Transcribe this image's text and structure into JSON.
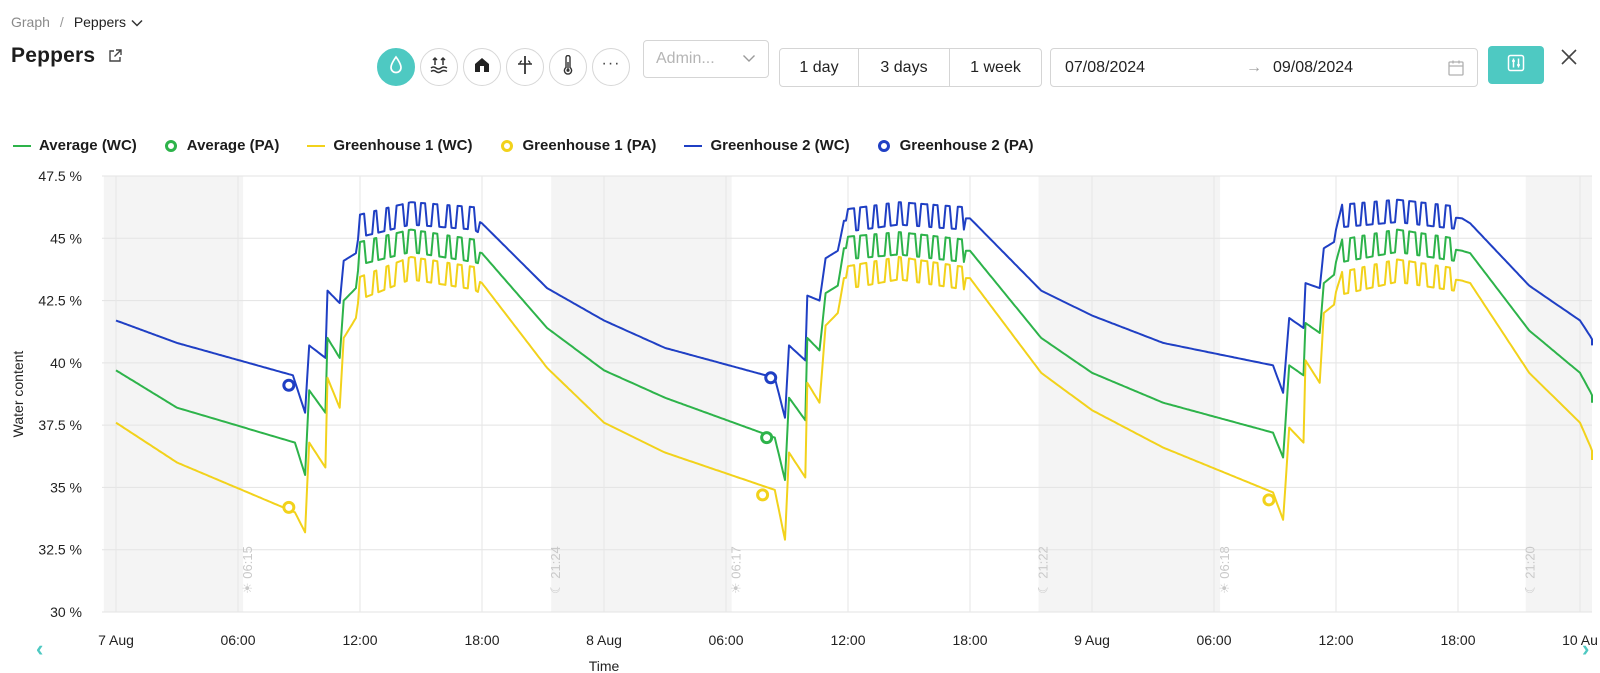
{
  "breadcrumb": {
    "root": "Graph",
    "separator": "/",
    "current": "Peppers"
  },
  "page_title": "Peppers",
  "metric_buttons": [
    {
      "icon": "water-drop-icon",
      "active": true
    },
    {
      "icon": "water-level-icon",
      "active": false
    },
    {
      "icon": "greenhouse-icon",
      "active": false
    },
    {
      "icon": "soil-sensor-icon",
      "active": false
    },
    {
      "icon": "thermometer-icon",
      "active": false
    },
    {
      "icon": "more-icon",
      "active": false,
      "label": "···"
    }
  ],
  "admin_select": {
    "placeholder": "Admin..."
  },
  "range_buttons": [
    {
      "label": "1 day"
    },
    {
      "label": "3 days"
    },
    {
      "label": "1 week"
    }
  ],
  "date_range": {
    "start": "07/08/2024",
    "arrow": "→",
    "end": "09/08/2024"
  },
  "colors": {
    "accent": "#4ec9c2",
    "average": "#2db34a",
    "greenhouse1": "#f2d21b",
    "greenhouse2": "#1f3fc4",
    "night": "#f4f4f4"
  },
  "legend": [
    {
      "label": "Average (WC)",
      "type": "line",
      "color": "#2db34a"
    },
    {
      "label": "Average (PA)",
      "type": "dot",
      "color": "#2db34a"
    },
    {
      "label": "Greenhouse 1 (WC)",
      "type": "line",
      "color": "#f2d21b"
    },
    {
      "label": "Greenhouse 1 (PA)",
      "type": "dot",
      "color": "#f2d21b"
    },
    {
      "label": "Greenhouse 2 (WC)",
      "type": "line",
      "color": "#1f3fc4"
    },
    {
      "label": "Greenhouse 2 (PA)",
      "type": "dot",
      "color": "#1f3fc4"
    }
  ],
  "chart_data": {
    "type": "line",
    "ylabel": "Water content",
    "xlabel": "Time",
    "ylim": [
      30,
      47.5
    ],
    "y_ticks": [
      "47.5 %",
      "45 %",
      "42.5 %",
      "40 %",
      "37.5 %",
      "35 %",
      "32.5 %",
      "30 %"
    ],
    "x_unit": "hours since 7 Aug 00:00",
    "x_ticks": [
      {
        "label": "7 Aug",
        "h": 0
      },
      {
        "label": "06:00",
        "h": 6
      },
      {
        "label": "12:00",
        "h": 12
      },
      {
        "label": "18:00",
        "h": 18
      },
      {
        "label": "8 Aug",
        "h": 24
      },
      {
        "label": "06:00",
        "h": 30
      },
      {
        "label": "12:00",
        "h": 36
      },
      {
        "label": "18:00",
        "h": 42
      },
      {
        "label": "9 Aug",
        "h": 48
      },
      {
        "label": "06:00",
        "h": 54
      },
      {
        "label": "12:00",
        "h": 60
      },
      {
        "label": "18:00",
        "h": 66
      },
      {
        "label": "10 Au",
        "h": 72
      }
    ],
    "night_bands": [
      [
        -0.6,
        6.25
      ],
      [
        21.4,
        30.28
      ],
      [
        45.37,
        54.3
      ],
      [
        69.33,
        72.8
      ]
    ],
    "sun_markers": [
      {
        "label": "☀ 06:15",
        "h": 6.25
      },
      {
        "label": "☾ 21:24",
        "h": 21.4
      },
      {
        "label": "☀ 06:17",
        "h": 30.28
      },
      {
        "label": "☾ 21:22",
        "h": 45.37
      },
      {
        "label": "☀ 06:18",
        "h": 54.3
      },
      {
        "label": "☾ 21:20",
        "h": 69.33
      }
    ],
    "day_shape": {
      "morning": [
        [
          0,
          0
        ],
        [
          8.8,
          -2.2
        ],
        [
          9.3,
          0.6
        ],
        [
          9.9,
          1.0
        ],
        [
          10.4,
          3.4
        ],
        [
          11.0,
          3.0
        ],
        [
          11.6,
          5.0
        ],
        [
          11.9,
          6.6
        ],
        [
          12.5,
          7.6
        ],
        [
          17.6,
          7.7
        ],
        [
          18.1,
          7.0
        ],
        [
          24,
          4.0
        ]
      ],
      "night_decay_start": 4.0
    },
    "series": [
      {
        "name": "Greenhouse 2 (WC)",
        "color": "#1f3fc4",
        "points": [
          [
            0,
            41.7
          ],
          [
            3,
            40.8
          ],
          [
            8.7,
            39.5
          ],
          [
            9.3,
            38.0
          ],
          [
            9.5,
            40.7
          ],
          [
            10.3,
            40.2
          ],
          [
            10.4,
            42.9
          ],
          [
            11.0,
            42.4
          ],
          [
            11.2,
            44.1
          ],
          [
            11.8,
            44.4
          ],
          [
            12.0,
            45.5
          ],
          [
            14.5,
            46.0
          ],
          [
            17.6,
            45.8
          ],
          [
            18.0,
            45.6
          ],
          [
            21.2,
            43.0
          ],
          [
            24,
            41.7
          ],
          [
            27,
            40.6
          ],
          [
            32.4,
            39.4
          ],
          [
            32.9,
            37.8
          ],
          [
            33.1,
            40.7
          ],
          [
            33.9,
            40.1
          ],
          [
            34.0,
            42.7
          ],
          [
            34.6,
            42.5
          ],
          [
            34.9,
            44.2
          ],
          [
            35.5,
            44.5
          ],
          [
            35.8,
            45.7
          ],
          [
            38.5,
            46.0
          ],
          [
            41.7,
            45.8
          ],
          [
            42.0,
            45.8
          ],
          [
            45.5,
            42.9
          ],
          [
            48,
            41.9
          ],
          [
            51.5,
            40.8
          ],
          [
            56.9,
            39.9
          ],
          [
            57.4,
            38.8
          ],
          [
            57.7,
            41.8
          ],
          [
            58.4,
            41.4
          ],
          [
            58.5,
            43.2
          ],
          [
            59.2,
            43.0
          ],
          [
            59.4,
            44.6
          ],
          [
            60.0,
            44.9
          ],
          [
            60.3,
            45.9
          ],
          [
            63.0,
            46.1
          ],
          [
            66.2,
            45.8
          ],
          [
            66.6,
            45.6
          ],
          [
            69.5,
            43.1
          ],
          [
            72,
            41.7
          ],
          [
            72.8,
            40.7
          ]
        ]
      },
      {
        "name": "Average (WC)",
        "color": "#2db34a",
        "points": [
          [
            0,
            39.7
          ],
          [
            3,
            38.2
          ],
          [
            8.8,
            36.8
          ],
          [
            9.3,
            35.5
          ],
          [
            9.5,
            38.9
          ],
          [
            10.3,
            38.0
          ],
          [
            10.4,
            41.0
          ],
          [
            11.0,
            40.2
          ],
          [
            11.2,
            42.5
          ],
          [
            11.8,
            43.0
          ],
          [
            12.0,
            44.4
          ],
          [
            14.5,
            44.9
          ],
          [
            17.6,
            44.5
          ],
          [
            18.0,
            44.4
          ],
          [
            21.2,
            41.4
          ],
          [
            24,
            39.7
          ],
          [
            27,
            38.6
          ],
          [
            32.4,
            37.0
          ],
          [
            32.9,
            35.3
          ],
          [
            33.1,
            38.6
          ],
          [
            33.9,
            37.7
          ],
          [
            34.0,
            41.0
          ],
          [
            34.6,
            40.5
          ],
          [
            34.9,
            42.8
          ],
          [
            35.5,
            43.1
          ],
          [
            35.8,
            44.6
          ],
          [
            38.5,
            44.8
          ],
          [
            41.7,
            44.5
          ],
          [
            42.0,
            44.5
          ],
          [
            45.5,
            41.0
          ],
          [
            48,
            39.6
          ],
          [
            51.5,
            38.4
          ],
          [
            56.9,
            37.2
          ],
          [
            57.4,
            36.2
          ],
          [
            57.7,
            39.9
          ],
          [
            58.4,
            39.5
          ],
          [
            58.5,
            41.6
          ],
          [
            59.2,
            41.2
          ],
          [
            59.4,
            43.2
          ],
          [
            60.0,
            43.6
          ],
          [
            60.3,
            44.5
          ],
          [
            63.0,
            44.9
          ],
          [
            66.2,
            44.5
          ],
          [
            66.6,
            44.4
          ],
          [
            69.5,
            41.3
          ],
          [
            72,
            39.6
          ],
          [
            72.8,
            38.4
          ]
        ]
      },
      {
        "name": "Greenhouse 1 (WC)",
        "color": "#f2d21b",
        "points": [
          [
            0,
            37.6
          ],
          [
            3,
            36.0
          ],
          [
            8.8,
            34.0
          ],
          [
            9.3,
            33.2
          ],
          [
            9.5,
            36.8
          ],
          [
            10.3,
            35.8
          ],
          [
            10.4,
            39.4
          ],
          [
            11.0,
            38.2
          ],
          [
            11.2,
            41.0
          ],
          [
            11.8,
            41.8
          ],
          [
            12.0,
            43.0
          ],
          [
            14.5,
            43.8
          ],
          [
            17.6,
            43.4
          ],
          [
            18.0,
            43.2
          ],
          [
            21.2,
            39.8
          ],
          [
            24,
            37.6
          ],
          [
            27,
            36.4
          ],
          [
            32.4,
            34.9
          ],
          [
            32.9,
            32.9
          ],
          [
            33.1,
            36.4
          ],
          [
            33.9,
            35.4
          ],
          [
            34.0,
            39.2
          ],
          [
            34.6,
            38.4
          ],
          [
            34.9,
            41.5
          ],
          [
            35.5,
            42.0
          ],
          [
            35.8,
            43.4
          ],
          [
            38.5,
            43.8
          ],
          [
            41.7,
            43.4
          ],
          [
            42.0,
            43.4
          ],
          [
            45.5,
            39.6
          ],
          [
            48,
            38.1
          ],
          [
            51.5,
            36.6
          ],
          [
            56.9,
            34.8
          ],
          [
            57.4,
            33.7
          ],
          [
            57.7,
            37.4
          ],
          [
            58.4,
            36.8
          ],
          [
            58.5,
            40.1
          ],
          [
            59.2,
            39.2
          ],
          [
            59.4,
            42.0
          ],
          [
            60.0,
            42.4
          ],
          [
            60.3,
            43.2
          ],
          [
            63.0,
            43.7
          ],
          [
            66.2,
            43.3
          ],
          [
            66.6,
            43.2
          ],
          [
            69.5,
            39.6
          ],
          [
            72,
            37.6
          ],
          [
            72.8,
            36.1
          ]
        ]
      }
    ],
    "pa_markers": [
      {
        "name": "Greenhouse 2 (PA)",
        "color": "#1f3fc4",
        "points": [
          [
            8.5,
            39.1
          ],
          [
            32.2,
            39.4
          ]
        ]
      },
      {
        "name": "Average (PA)",
        "color": "#2db34a",
        "points": [
          [
            32.0,
            37.0
          ]
        ]
      },
      {
        "name": "Greenhouse 1 (PA)",
        "color": "#f2d21b",
        "points": [
          [
            8.5,
            34.2
          ],
          [
            31.8,
            34.7
          ],
          [
            56.7,
            34.5
          ]
        ]
      }
    ]
  },
  "nav": {
    "prev": "‹",
    "next": "›"
  }
}
